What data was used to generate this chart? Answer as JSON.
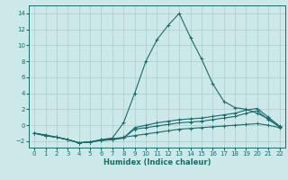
{
  "xlabel": "Humidex (Indice chaleur)",
  "ylabel": "",
  "background_color": "#cce8e8",
  "grid_color": "#aacccc",
  "line_color": "#1a6b6b",
  "xlim": [
    -0.5,
    22.5
  ],
  "ylim": [
    -2.8,
    15.0
  ],
  "xticks": [
    0,
    1,
    2,
    3,
    4,
    5,
    6,
    7,
    8,
    9,
    10,
    11,
    12,
    13,
    14,
    15,
    16,
    17,
    18,
    19,
    20,
    21,
    22
  ],
  "yticks": [
    -2,
    0,
    2,
    4,
    6,
    8,
    10,
    12,
    14
  ],
  "series": [
    [
      0,
      1,
      2,
      3,
      4,
      5,
      6,
      7,
      8,
      9,
      10,
      11,
      12,
      13,
      14,
      15,
      16,
      17,
      18,
      19,
      20,
      21,
      22
    ],
    [
      -1.0,
      -1.3,
      -1.5,
      -1.8,
      -2.2,
      -2.1,
      -1.9,
      -1.8,
      -1.6,
      -0.5,
      -0.3,
      -0.1,
      0.1,
      0.3,
      0.4,
      0.5,
      0.7,
      0.9,
      1.1,
      1.5,
      1.8,
      0.7,
      -0.2
    ],
    [
      -1.0,
      -1.3,
      -1.5,
      -1.8,
      -2.2,
      -2.1,
      -1.9,
      -1.8,
      -1.6,
      -0.3,
      0.0,
      0.3,
      0.5,
      0.7,
      0.8,
      0.9,
      1.1,
      1.3,
      1.5,
      1.9,
      2.1,
      1.0,
      -0.1
    ],
    [
      -1.0,
      -1.2,
      -1.5,
      -1.8,
      -2.2,
      -2.1,
      -1.8,
      -1.6,
      0.3,
      4.0,
      8.0,
      10.7,
      12.5,
      14.0,
      11.0,
      8.3,
      5.2,
      3.0,
      2.2,
      2.0,
      1.5,
      0.8,
      -0.2
    ],
    [
      -1.0,
      -1.3,
      -1.5,
      -1.8,
      -2.2,
      -2.1,
      -1.8,
      -1.7,
      -1.5,
      -1.3,
      -1.1,
      -0.9,
      -0.7,
      -0.5,
      -0.4,
      -0.3,
      -0.2,
      -0.1,
      0.0,
      0.1,
      0.2,
      0.0,
      -0.3
    ]
  ]
}
